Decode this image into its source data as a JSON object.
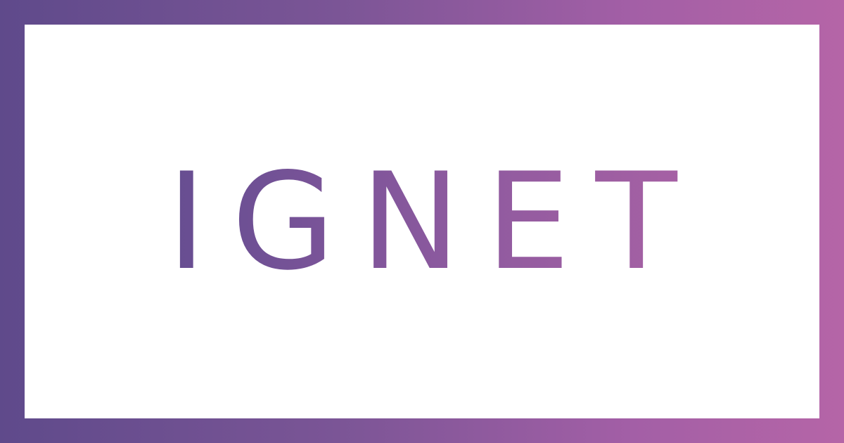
{
  "brand": {
    "wordmark": "IGNET"
  },
  "colors": {
    "gradient_start": "#5f4a8b",
    "gradient_end": "#b565a7",
    "panel_background": "#ffffff"
  }
}
